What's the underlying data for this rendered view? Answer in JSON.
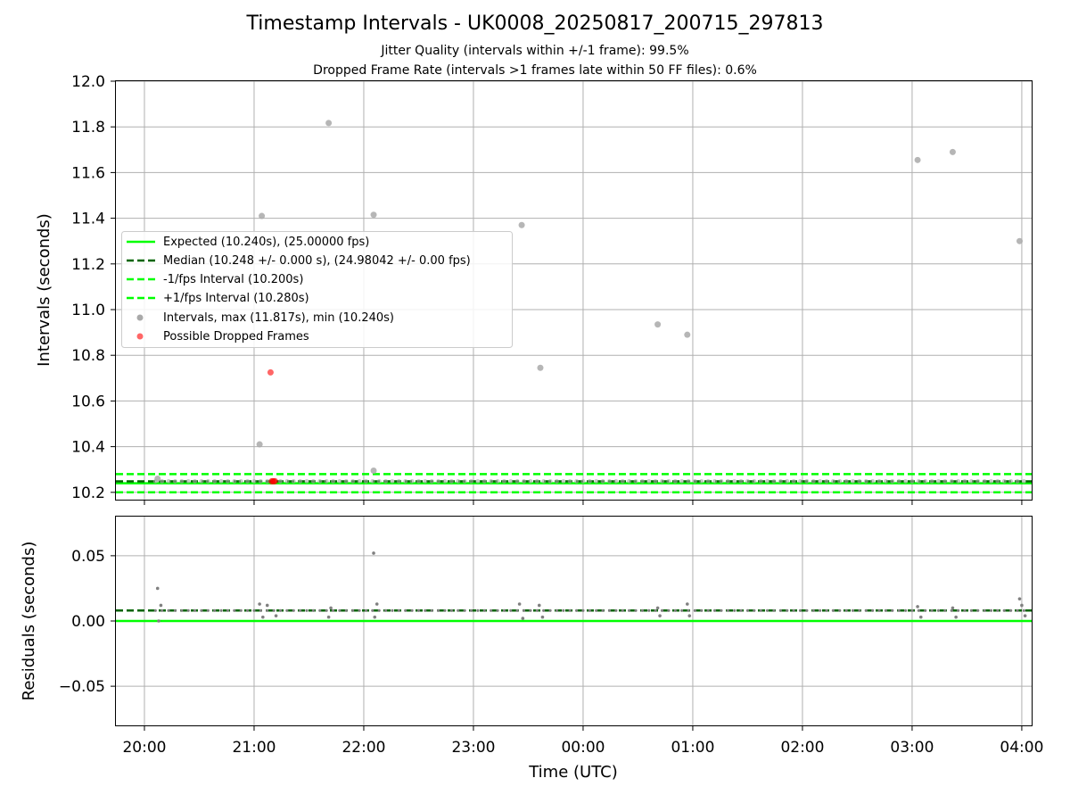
{
  "chart_data": [
    {
      "type": "scatter",
      "title": "Timestamp Intervals - UK0008_20250817_200715_297813",
      "subtitle_lines": [
        "Jitter Quality (intervals within +/-1 frame): 99.5%",
        "Dropped Frame Rate (intervals >1 frames late within 50 FF files): 0.6%"
      ],
      "ylabel": "Intervals (seconds)",
      "ylim": [
        10.168,
        12.0
      ],
      "yticks": [
        10.2,
        10.4,
        10.6,
        10.8,
        11.0,
        11.2,
        11.4,
        11.6,
        11.8,
        12.0
      ],
      "ytick_labels": [
        "10.2",
        "10.4",
        "10.6",
        "10.8",
        "11.0",
        "11.2",
        "11.4",
        "11.6",
        "11.8",
        "12.0"
      ],
      "xlim_hours": [
        19.74,
        28.09
      ],
      "grid": true,
      "legend_placement": "center-left",
      "lines": [
        {
          "name": "Expected (10.240s), (25.00000 fps)",
          "y": 10.24,
          "color": "#00ff00",
          "style": "solid"
        },
        {
          "name": "Median (10.248 +/- 0.000 s), (24.98042 +/- 0.00 fps)",
          "y": 10.248,
          "color": "#006400",
          "style": "dashed"
        },
        {
          "name": "-1/fps Interval (10.200s)",
          "y": 10.2,
          "color": "#00ff00",
          "style": "dashed"
        },
        {
          "name": "+1/fps Interval (10.280s)",
          "y": 10.28,
          "color": "#00ff00",
          "style": "dashed"
        }
      ],
      "series": [
        {
          "name": "Intervals, max (11.817s), min (10.240s)",
          "color": "#a9a9a9",
          "x_hours": [
            21.07,
            21.68,
            22.09,
            23.44,
            23.61,
            24.68,
            24.95,
            27.05,
            27.37,
            27.98,
            21.05,
            22.09,
            20.12
          ],
          "y": [
            11.41,
            11.817,
            11.415,
            11.37,
            10.745,
            10.935,
            10.89,
            11.655,
            11.69,
            11.3,
            10.41,
            10.295,
            10.26
          ]
        },
        {
          "name": "Possible Dropped Frames",
          "color": "#ff0000",
          "x_hours": [
            21.15,
            21.16,
            21.17,
            21.18,
            21.19
          ],
          "y": [
            10.725,
            10.248,
            10.249,
            10.248,
            10.249
          ]
        }
      ]
    },
    {
      "type": "scatter",
      "ylabel": "Residuals (seconds)",
      "xlabel": "Time (UTC)",
      "ylim": [
        -0.08,
        0.08
      ],
      "yticks": [
        -0.05,
        0.0,
        0.05
      ],
      "ytick_labels": [
        "−0.05",
        "0.00",
        "0.05"
      ],
      "xlim_hours": [
        19.74,
        28.09
      ],
      "xticks_hours": [
        20,
        21,
        22,
        23,
        24,
        25,
        26,
        27,
        28
      ],
      "xtick_labels": [
        "20:00",
        "21:00",
        "22:00",
        "23:00",
        "00:00",
        "01:00",
        "02:00",
        "03:00",
        "04:00"
      ],
      "grid": true,
      "lines": [
        {
          "y": 0.0,
          "color": "#00ff00",
          "style": "solid"
        },
        {
          "y": 0.008,
          "color": "#006400",
          "style": "dashed"
        }
      ],
      "series": [
        {
          "color": "#808080",
          "x_hours": [
            20.12,
            20.13,
            20.15,
            21.05,
            21.08,
            21.12,
            21.2,
            21.68,
            21.7,
            22.09,
            22.1,
            22.12,
            23.42,
            23.45,
            23.6,
            23.63,
            24.68,
            24.7,
            24.95,
            24.97,
            27.05,
            27.08,
            27.37,
            27.4,
            27.98,
            28.0,
            28.03
          ],
          "y": [
            0.025,
            0.0,
            0.012,
            0.013,
            0.003,
            0.012,
            0.004,
            0.003,
            0.01,
            0.052,
            0.003,
            0.013,
            0.013,
            0.002,
            0.012,
            0.003,
            0.01,
            0.004,
            0.013,
            0.004,
            0.011,
            0.003,
            0.01,
            0.003,
            0.017,
            0.012,
            0.004
          ]
        }
      ]
    }
  ]
}
